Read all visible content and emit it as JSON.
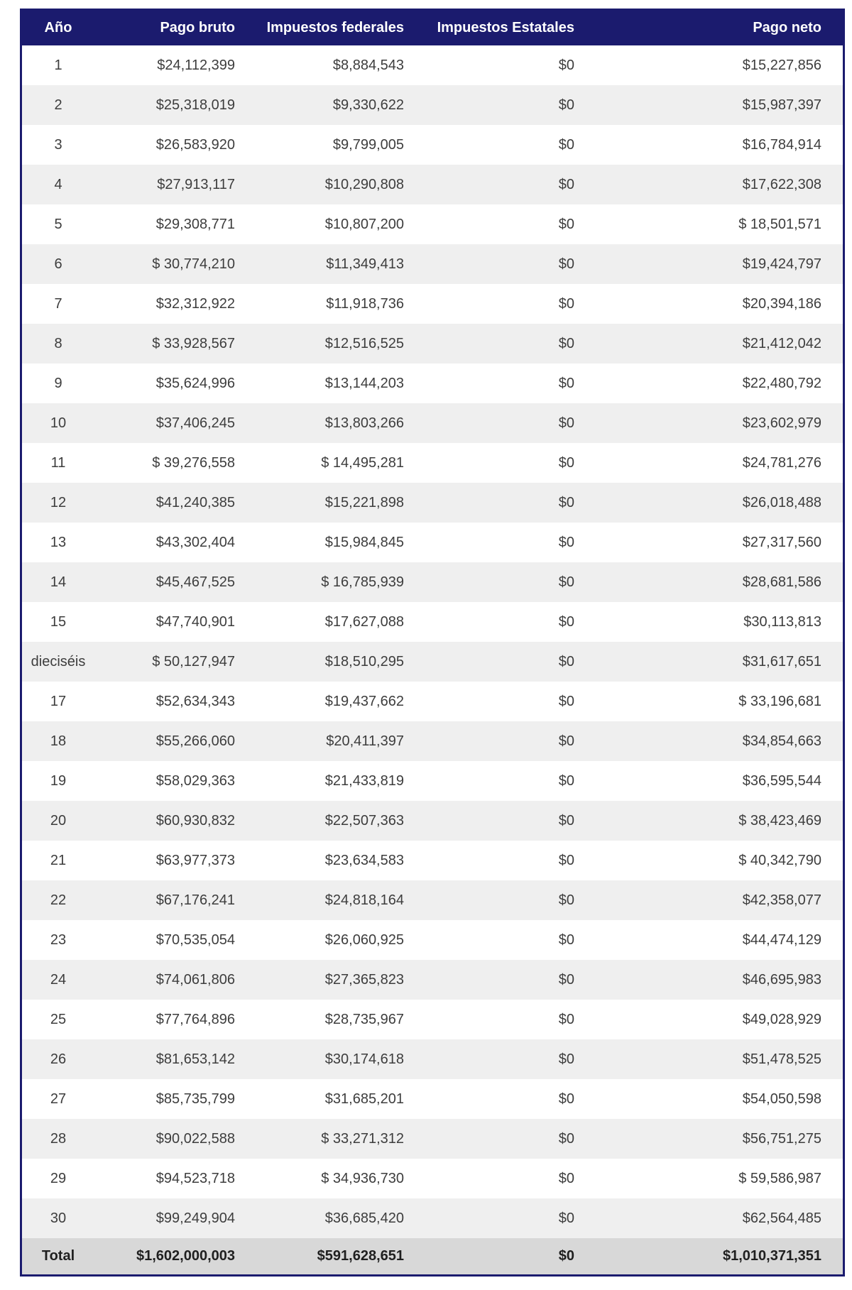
{
  "colors": {
    "header_background": "#1b1b6e",
    "header_text": "#ffffff",
    "row_alt_background": "#efefef",
    "total_row_background": "#d8d8d8",
    "body_text": "#3d3d3d",
    "table_border": "#1b1b6e"
  },
  "table": {
    "columns": [
      "Año",
      "Pago bruto",
      "Impuestos federales",
      "Impuestos Estatales",
      "Pago neto"
    ],
    "rows": [
      [
        "1",
        "$24,112,399",
        "$8,884,543",
        "$0",
        "$15,227,856"
      ],
      [
        "2",
        "$25,318,019",
        "$9,330,622",
        "$0",
        "$15,987,397"
      ],
      [
        "3",
        "$26,583,920",
        "$9,799,005",
        "$0",
        "$16,784,914"
      ],
      [
        "4",
        "$27,913,117",
        "$10,290,808",
        "$0",
        "$17,622,308"
      ],
      [
        "5",
        "$29,308,771",
        "$10,807,200",
        "$0",
        "$ 18,501,571"
      ],
      [
        "6",
        "$ 30,774,210",
        "$11,349,413",
        "$0",
        "$19,424,797"
      ],
      [
        "7",
        "$32,312,922",
        "$11,918,736",
        "$0",
        "$20,394,186"
      ],
      [
        "8",
        "$ 33,928,567",
        "$12,516,525",
        "$0",
        "$21,412,042"
      ],
      [
        "9",
        "$35,624,996",
        "$13,144,203",
        "$0",
        "$22,480,792"
      ],
      [
        "10",
        "$37,406,245",
        "$13,803,266",
        "$0",
        "$23,602,979"
      ],
      [
        "11",
        "$ 39,276,558",
        "$ 14,495,281",
        "$0",
        "$24,781,276"
      ],
      [
        "12",
        "$41,240,385",
        "$15,221,898",
        "$0",
        "$26,018,488"
      ],
      [
        "13",
        "$43,302,404",
        "$15,984,845",
        "$0",
        "$27,317,560"
      ],
      [
        "14",
        "$45,467,525",
        "$ 16,785,939",
        "$0",
        "$28,681,586"
      ],
      [
        "15",
        "$47,740,901",
        "$17,627,088",
        "$0",
        "$30,113,813"
      ],
      [
        "dieciséis",
        "$ 50,127,947",
        "$18,510,295",
        "$0",
        "$31,617,651"
      ],
      [
        "17",
        "$52,634,343",
        "$19,437,662",
        "$0",
        "$ 33,196,681"
      ],
      [
        "18",
        "$55,266,060",
        "$20,411,397",
        "$0",
        "$34,854,663"
      ],
      [
        "19",
        "$58,029,363",
        "$21,433,819",
        "$0",
        "$36,595,544"
      ],
      [
        "20",
        "$60,930,832",
        "$22,507,363",
        "$0",
        "$ 38,423,469"
      ],
      [
        "21",
        "$63,977,373",
        "$23,634,583",
        "$0",
        "$ 40,342,790"
      ],
      [
        "22",
        "$67,176,241",
        "$24,818,164",
        "$0",
        "$42,358,077"
      ],
      [
        "23",
        "$70,535,054",
        "$26,060,925",
        "$0",
        "$44,474,129"
      ],
      [
        "24",
        "$74,061,806",
        "$27,365,823",
        "$0",
        "$46,695,983"
      ],
      [
        "25",
        "$77,764,896",
        "$28,735,967",
        "$0",
        "$49,028,929"
      ],
      [
        "26",
        "$81,653,142",
        "$30,174,618",
        "$0",
        "$51,478,525"
      ],
      [
        "27",
        "$85,735,799",
        "$31,685,201",
        "$0",
        "$54,050,598"
      ],
      [
        "28",
        "$90,022,588",
        "$ 33,271,312",
        "$0",
        "$56,751,275"
      ],
      [
        "29",
        "$94,523,718",
        "$ 34,936,730",
        "$0",
        "$ 59,586,987"
      ],
      [
        "30",
        "$99,249,904",
        "$36,685,420",
        "$0",
        "$62,564,485"
      ]
    ],
    "total_row": [
      "Total",
      "$1,602,000,003",
      "$591,628,651",
      "$0",
      "$1,010,371,351"
    ]
  }
}
